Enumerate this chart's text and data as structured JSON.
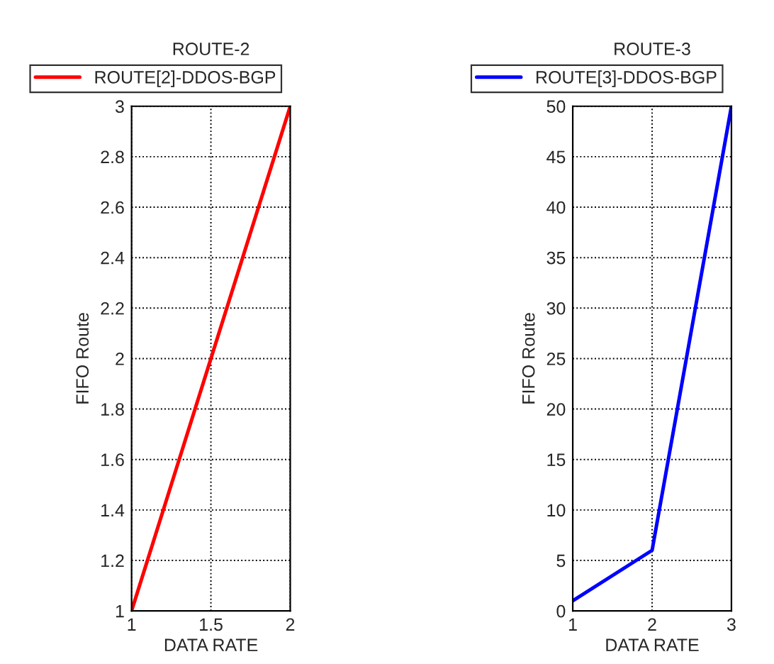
{
  "chart_data": [
    {
      "type": "line",
      "title": "ROUTE-2",
      "xlabel": "DATA RATE",
      "ylabel": "FIFO Route",
      "x": [
        1,
        2
      ],
      "series": [
        {
          "name": "ROUTE[2]-DDOS-BGP",
          "color": "#ff0000",
          "values": [
            1,
            3
          ]
        }
      ],
      "xlim": [
        1,
        2
      ],
      "xticks": [
        1,
        1.5,
        2
      ],
      "ylim": [
        1,
        3
      ],
      "yticks": [
        1,
        1.2,
        1.4,
        1.6,
        1.8,
        2,
        2.2,
        2.4,
        2.6,
        2.8,
        3
      ],
      "grid": true,
      "legend": "top",
      "marker": "none",
      "line_style": "solid"
    },
    {
      "type": "line",
      "title": "ROUTE-3",
      "xlabel": "DATA RATE",
      "ylabel": "FIFO Route",
      "x": [
        1,
        2,
        3
      ],
      "series": [
        {
          "name": "ROUTE[3]-DDOS-BGP",
          "color": "#0000ff",
          "values": [
            1,
            6,
            50
          ]
        }
      ],
      "xlim": [
        1,
        3
      ],
      "xticks": [
        1,
        2,
        3
      ],
      "ylim": [
        0,
        50
      ],
      "yticks": [
        0,
        5,
        10,
        15,
        20,
        25,
        30,
        35,
        40,
        45,
        50
      ],
      "grid": true,
      "legend": "top",
      "marker": "none",
      "line_style": "solid"
    }
  ]
}
